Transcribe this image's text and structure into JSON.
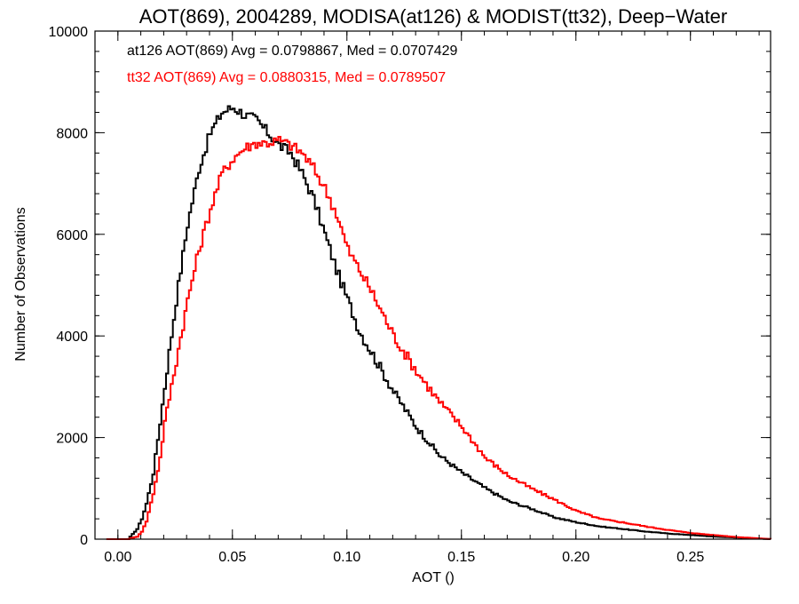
{
  "chart_data": {
    "type": "line",
    "title": "AOT(869), 2004289, MODISA(at126) & MODIST(tt32), Deep−Water",
    "xlabel": "AOT ()",
    "ylabel": "Number of Observations",
    "xlim": [
      -0.01,
      0.285
    ],
    "ylim": [
      0,
      10000
    ],
    "x_ticks": [
      0.0,
      0.05,
      0.1,
      0.15,
      0.2,
      0.25
    ],
    "x_tick_labels": [
      "0.00",
      "0.05",
      "0.10",
      "0.15",
      "0.20",
      "0.25"
    ],
    "y_ticks": [
      0,
      2000,
      4000,
      6000,
      8000,
      10000
    ],
    "y_tick_labels": [
      "0",
      "2000",
      "4000",
      "6000",
      "8000",
      "10000"
    ],
    "grid": false,
    "legend": "top-left",
    "annotations": [
      {
        "text": "at126 AOT(869) Avg = 0.0798867, Med = 0.0707429",
        "color": "#000000"
      },
      {
        "text": "tt32 AOT(869) Avg = 0.0880315, Med = 0.0789507",
        "color": "#ff0000"
      }
    ],
    "series": [
      {
        "color": "#000000",
        "x": [
          -0.005,
          0.0,
          0.004,
          0.008,
          0.01,
          0.012,
          0.015,
          0.018,
          0.02,
          0.025,
          0.03,
          0.035,
          0.04,
          0.045,
          0.05,
          0.055,
          0.06,
          0.065,
          0.07,
          0.075,
          0.08,
          0.085,
          0.09,
          0.095,
          0.1,
          0.105,
          0.11,
          0.12,
          0.13,
          0.14,
          0.15,
          0.16,
          0.17,
          0.18,
          0.19,
          0.2,
          0.21,
          0.22,
          0.23,
          0.24,
          0.25,
          0.26,
          0.27,
          0.285
        ],
        "values": [
          0,
          0,
          0,
          200,
          400,
          700,
          1300,
          2300,
          3000,
          4700,
          6200,
          7300,
          8000,
          8400,
          8500,
          8350,
          8250,
          8000,
          7750,
          7600,
          7200,
          6700,
          6000,
          5300,
          4700,
          4100,
          3700,
          2900,
          2200,
          1650,
          1300,
          1000,
          750,
          600,
          430,
          330,
          250,
          200,
          150,
          110,
          80,
          50,
          30,
          0
        ]
      },
      {
        "color": "#ff0000",
        "x": [
          -0.005,
          0.0,
          0.004,
          0.008,
          0.01,
          0.012,
          0.015,
          0.018,
          0.02,
          0.025,
          0.03,
          0.035,
          0.04,
          0.045,
          0.05,
          0.055,
          0.06,
          0.065,
          0.07,
          0.075,
          0.08,
          0.085,
          0.09,
          0.095,
          0.1,
          0.105,
          0.11,
          0.12,
          0.13,
          0.14,
          0.15,
          0.16,
          0.17,
          0.18,
          0.19,
          0.2,
          0.21,
          0.22,
          0.23,
          0.24,
          0.25,
          0.26,
          0.27,
          0.285
        ],
        "values": [
          0,
          0,
          0,
          50,
          150,
          350,
          900,
          1600,
          2300,
          3500,
          4700,
          5700,
          6500,
          7200,
          7500,
          7700,
          7800,
          7800,
          7850,
          7750,
          7600,
          7300,
          6900,
          6400,
          5700,
          5300,
          4900,
          4000,
          3300,
          2700,
          2200,
          1600,
          1250,
          1000,
          780,
          550,
          400,
          330,
          250,
          180,
          120,
          80,
          40,
          0
        ]
      }
    ]
  }
}
